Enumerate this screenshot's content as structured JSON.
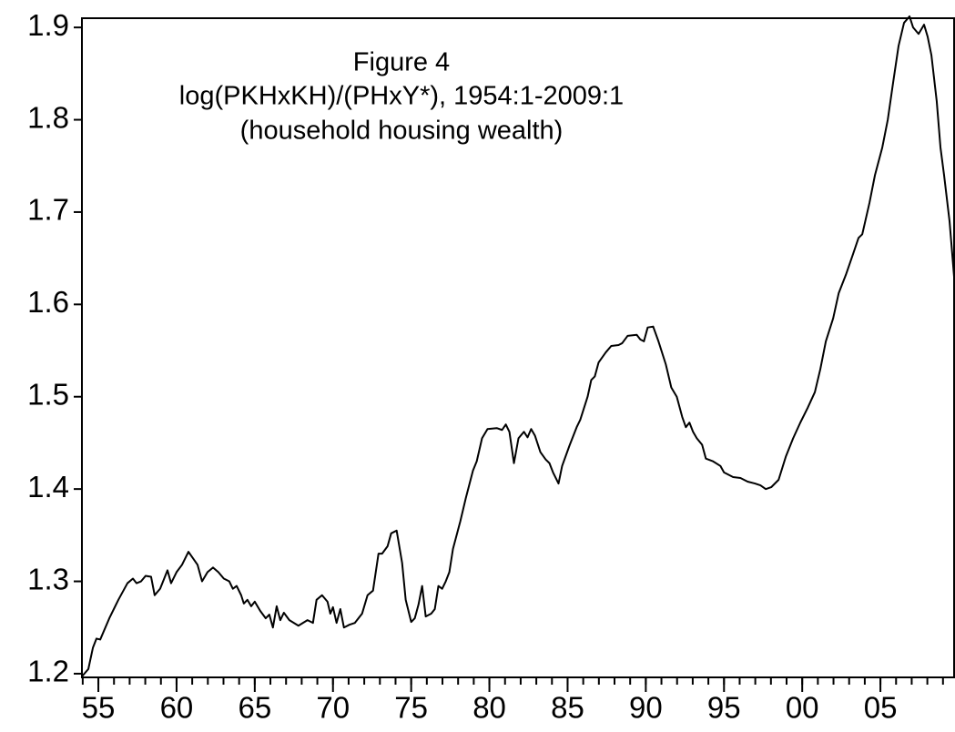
{
  "chart_data": {
    "type": "line",
    "title": "Figure 4",
    "subtitle": "log(PKHxKH)/(PHxY*), 1954:1-2009:1",
    "annotation": "(household housing wealth)",
    "color": "#000000",
    "xlim": [
      1953.95,
      2009.71
    ],
    "ylim": [
      1.196,
      1.91
    ],
    "yticks": [
      1.2,
      1.3,
      1.4,
      1.5,
      1.6,
      1.7,
      1.8,
      1.9
    ],
    "xticks": [
      {
        "value": 1955,
        "label": "55"
      },
      {
        "value": 1960,
        "label": "60"
      },
      {
        "value": 1965,
        "label": "65"
      },
      {
        "value": 1970,
        "label": "70"
      },
      {
        "value": 1975,
        "label": "75"
      },
      {
        "value": 1980,
        "label": "80"
      },
      {
        "value": 1985,
        "label": "85"
      },
      {
        "value": 1990,
        "label": "90"
      },
      {
        "value": 1995,
        "label": "95"
      },
      {
        "value": 2000,
        "label": "00"
      },
      {
        "value": 2005,
        "label": "05"
      }
    ],
    "xminor_ticks": [
      1954,
      1955,
      1956,
      1957,
      1958,
      1959,
      1960,
      1961,
      1962,
      1963,
      1964,
      1965,
      1966,
      1967,
      1968,
      1969,
      1970,
      1971,
      1972,
      1973,
      1974,
      1975,
      1976,
      1977,
      1978,
      1979,
      1980,
      1981,
      1982,
      1983,
      1984,
      1985,
      1986,
      1987,
      1988,
      1989,
      1990,
      1991,
      1992,
      1993,
      1994,
      1995,
      1996,
      1997,
      1998,
      1999,
      2000,
      2001,
      2002,
      2003,
      2004,
      2005,
      2006,
      2007,
      2008,
      2009
    ],
    "x": [
      1953.95,
      1954.36,
      1954.65,
      1954.88,
      1955.12,
      1955.7,
      1956.28,
      1956.86,
      1957.21,
      1957.44,
      1957.73,
      1958.02,
      1958.37,
      1958.6,
      1958.95,
      1959.42,
      1959.65,
      1960.0,
      1960.35,
      1960.76,
      1961.05,
      1961.34,
      1961.63,
      1961.98,
      1962.33,
      1962.67,
      1963.02,
      1963.37,
      1963.6,
      1963.84,
      1964.13,
      1964.3,
      1964.53,
      1964.77,
      1965.0,
      1965.35,
      1965.7,
      1965.93,
      1966.16,
      1966.4,
      1966.63,
      1966.86,
      1967.21,
      1967.79,
      1968.37,
      1968.72,
      1968.95,
      1969.3,
      1969.65,
      1969.83,
      1970.0,
      1970.23,
      1970.47,
      1970.7,
      1971.05,
      1971.4,
      1971.86,
      1972.21,
      1972.56,
      1972.91,
      1973.14,
      1973.49,
      1973.72,
      1974.07,
      1974.42,
      1974.65,
      1975.0,
      1975.23,
      1975.47,
      1975.7,
      1975.93,
      1976.28,
      1976.51,
      1976.74,
      1976.98,
      1977.21,
      1977.44,
      1977.67,
      1978.14,
      1978.49,
      1978.95,
      1979.19,
      1979.53,
      1979.88,
      1980.47,
      1980.81,
      1981.05,
      1981.28,
      1981.57,
      1981.86,
      1982.21,
      1982.44,
      1982.67,
      1982.91,
      1983.26,
      1983.6,
      1983.84,
      1984.07,
      1984.42,
      1984.65,
      1985.12,
      1985.58,
      1985.81,
      1986.28,
      1986.51,
      1986.74,
      1986.98,
      1987.44,
      1987.79,
      1988.26,
      1988.49,
      1988.84,
      1989.42,
      1989.65,
      1989.88,
      1990.12,
      1990.47,
      1990.81,
      1991.28,
      1991.63,
      1991.98,
      1992.33,
      1992.56,
      1992.79,
      1993.02,
      1993.26,
      1993.6,
      1993.84,
      1994.3,
      1994.77,
      1995.0,
      1995.58,
      1996.05,
      1996.51,
      1996.98,
      1997.33,
      1997.67,
      1998.02,
      1998.49,
      1998.95,
      1999.42,
      1999.88,
      2000.35,
      2000.81,
      2001.16,
      2001.51,
      2001.98,
      2002.33,
      2002.79,
      2003.26,
      2003.6,
      2003.84,
      2004.3,
      2004.65,
      2005.12,
      2005.47,
      2005.81,
      2006.16,
      2006.51,
      2006.86,
      2007.09,
      2007.44,
      2007.79,
      2008.02,
      2008.26,
      2008.6,
      2008.84,
      2009.07,
      2009.42,
      2009.71
    ],
    "values": [
      1.197,
      1.205,
      1.228,
      1.238,
      1.237,
      1.26,
      1.28,
      1.298,
      1.303,
      1.298,
      1.3,
      1.306,
      1.305,
      1.285,
      1.292,
      1.312,
      1.298,
      1.31,
      1.318,
      1.332,
      1.325,
      1.318,
      1.3,
      1.31,
      1.315,
      1.31,
      1.303,
      1.3,
      1.292,
      1.295,
      1.285,
      1.276,
      1.28,
      1.273,
      1.278,
      1.268,
      1.26,
      1.264,
      1.25,
      1.273,
      1.258,
      1.266,
      1.258,
      1.252,
      1.258,
      1.255,
      1.28,
      1.285,
      1.278,
      1.265,
      1.272,
      1.255,
      1.27,
      1.25,
      1.253,
      1.255,
      1.265,
      1.285,
      1.29,
      1.33,
      1.33,
      1.338,
      1.352,
      1.355,
      1.32,
      1.28,
      1.256,
      1.26,
      1.275,
      1.295,
      1.262,
      1.265,
      1.27,
      1.295,
      1.292,
      1.3,
      1.31,
      1.335,
      1.365,
      1.39,
      1.42,
      1.43,
      1.455,
      1.465,
      1.466,
      1.464,
      1.47,
      1.462,
      1.428,
      1.455,
      1.462,
      1.456,
      1.465,
      1.458,
      1.44,
      1.432,
      1.428,
      1.418,
      1.406,
      1.425,
      1.447,
      1.467,
      1.475,
      1.5,
      1.518,
      1.522,
      1.537,
      1.548,
      1.555,
      1.556,
      1.558,
      1.566,
      1.567,
      1.562,
      1.56,
      1.575,
      1.576,
      1.56,
      1.535,
      1.51,
      1.5,
      1.478,
      1.467,
      1.472,
      1.462,
      1.455,
      1.448,
      1.433,
      1.43,
      1.425,
      1.418,
      1.413,
      1.412,
      1.408,
      1.406,
      1.404,
      1.4,
      1.402,
      1.41,
      1.435,
      1.455,
      1.472,
      1.488,
      1.505,
      1.53,
      1.56,
      1.585,
      1.612,
      1.632,
      1.655,
      1.672,
      1.676,
      1.71,
      1.74,
      1.77,
      1.8,
      1.84,
      1.88,
      1.905,
      1.912,
      1.9,
      1.893,
      1.903,
      1.89,
      1.87,
      1.82,
      1.77,
      1.74,
      1.69,
      1.63
    ]
  }
}
